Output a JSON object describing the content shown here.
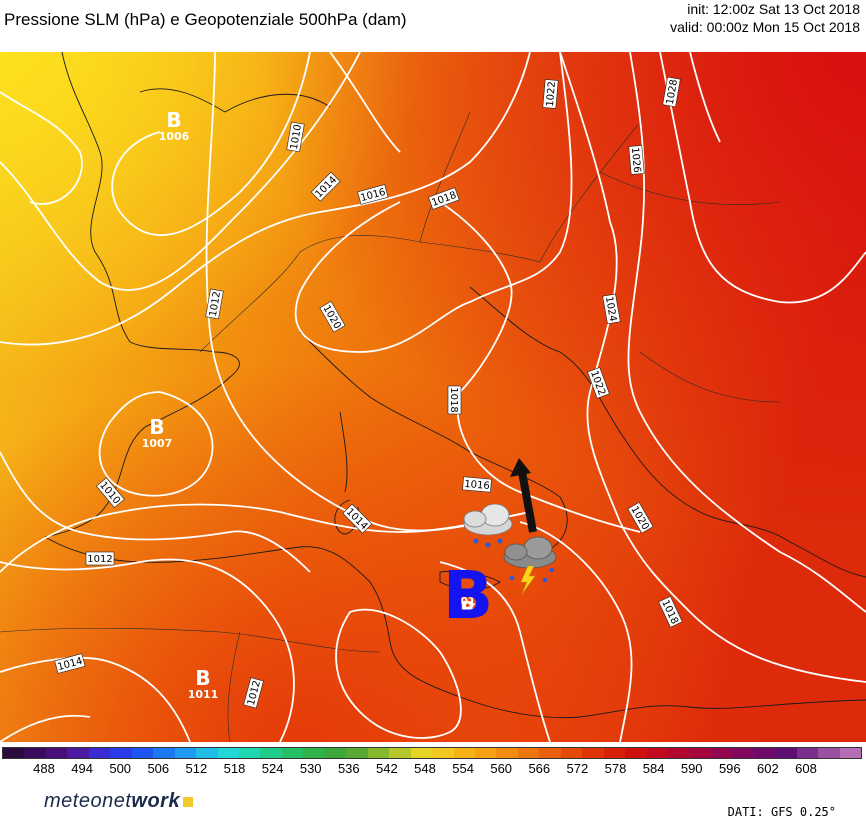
{
  "header": {
    "title": "Pressione SLM (hPa) e Geopotenziale 500hPa (dam)",
    "init": "init: 12:00z Sat 13 Oct 2018",
    "valid": "valid: 00:00z Mon 15 Oct 2018"
  },
  "isobar_labels": [
    "1010",
    "1014",
    "1016",
    "1018",
    "1022",
    "1026",
    "1028",
    "1012",
    "1020",
    "1024",
    "1018",
    "1022",
    "1016",
    "1014",
    "1010",
    "1012",
    "1014",
    "1012",
    "1020",
    "1018"
  ],
  "pressure_centers": [
    {
      "letter": "B",
      "value": "1006"
    },
    {
      "letter": "B",
      "value": "1007"
    },
    {
      "letter": "B",
      "value": "1011"
    },
    {
      "letter": "B",
      "value": "1013"
    }
  ],
  "colorbar": {
    "ticks": [
      "488",
      "494",
      "500",
      "506",
      "512",
      "518",
      "524",
      "530",
      "536",
      "542",
      "548",
      "554",
      "560",
      "566",
      "572",
      "578",
      "584",
      "590",
      "596",
      "602",
      "608"
    ],
    "colors": [
      "#2b0a3d",
      "#3a0a5c",
      "#4a0e7a",
      "#4b1aa0",
      "#3c2bd0",
      "#2a3bea",
      "#1e55f0",
      "#1a78f3",
      "#1e9af0",
      "#21bce8",
      "#23d7d8",
      "#1fd6b0",
      "#20cc8a",
      "#25c066",
      "#2fb24a",
      "#3ea73b",
      "#5aa834",
      "#86b82e",
      "#b7c62a",
      "#e6d426",
      "#f2c71f",
      "#f5b416",
      "#f5a111",
      "#f28c0e",
      "#ee760c",
      "#ea600a",
      "#e54a0a",
      "#df3308",
      "#d81f08",
      "#cf1010",
      "#c20a1e",
      "#b3062e",
      "#a4053f",
      "#93054f",
      "#82075e",
      "#700a6a",
      "#5f0e74",
      "#7a2e8a",
      "#9a4fa0",
      "#b56db5"
    ]
  },
  "logo": {
    "prefix": "meteonet",
    "suffix": "work"
  },
  "footer": {
    "source": "DATI:  GFS 0.25°"
  }
}
